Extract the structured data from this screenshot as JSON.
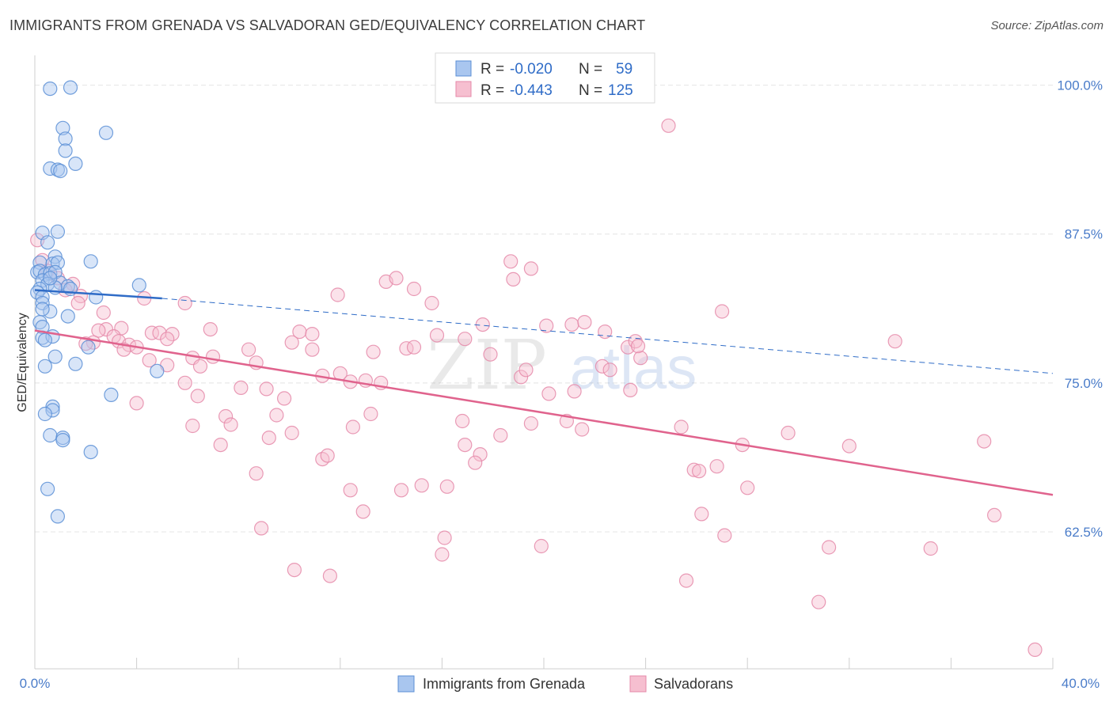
{
  "header": {
    "title": "IMMIGRANTS FROM GRENADA VS SALVADORAN GED/EQUIVALENCY CORRELATION CHART",
    "source": "Source: ZipAtlas.com"
  },
  "watermark": {
    "zip": "ZIP",
    "atlas": "atlas"
  },
  "colors": {
    "blue_fill": "#a9c6ef",
    "blue_stroke": "#5b8fd6",
    "blue_line": "#2f6cc7",
    "pink_fill": "#f6bfd0",
    "pink_stroke": "#e58aa9",
    "pink_line": "#e0638d",
    "axis_label": "#4a7cc9",
    "grid": "#e4e4e4"
  },
  "legend": {
    "rows": [
      {
        "r_label": "R = ",
        "r_value": "-0.020",
        "n_label": "N = ",
        "n_value": "59"
      },
      {
        "r_label": "R = ",
        "r_value": "-0.443",
        "n_label": "N = ",
        "n_value": "125"
      }
    ]
  },
  "chart_data": {
    "type": "scatter",
    "title": "IMMIGRANTS FROM GRENADA VS SALVADORAN GED/EQUIVALENCY CORRELATION CHART",
    "xlabel": "",
    "ylabel": "GED/Equivalency",
    "xlim": [
      0,
      40
    ],
    "ylim": [
      51,
      102.5
    ],
    "x_tick_labels": [
      "0.0%",
      "40.0%"
    ],
    "y_ticks": [
      62.5,
      75.0,
      87.5,
      100.0
    ],
    "y_tick_labels": [
      "62.5%",
      "75.0%",
      "87.5%",
      "100.0%"
    ],
    "legend_position": "bottom-center",
    "series": [
      {
        "name": "Immigrants from Grenada",
        "color": "blue",
        "r": -0.02,
        "n": 59,
        "trend": {
          "solid": [
            [
              0,
              82.8
            ],
            [
              5.0,
              82.1
            ]
          ],
          "dashed": [
            [
              5.0,
              82.1
            ],
            [
              40,
              75.8
            ]
          ]
        },
        "points": [
          [
            0.6,
            99.7
          ],
          [
            1.4,
            99.8
          ],
          [
            1.1,
            96.4
          ],
          [
            1.2,
            95.5
          ],
          [
            2.8,
            96.0
          ],
          [
            1.2,
            94.5
          ],
          [
            1.6,
            93.4
          ],
          [
            0.6,
            93.0
          ],
          [
            0.9,
            92.9
          ],
          [
            1.0,
            92.8
          ],
          [
            0.3,
            87.6
          ],
          [
            0.9,
            87.7
          ],
          [
            0.5,
            86.8
          ],
          [
            0.8,
            85.6
          ],
          [
            0.2,
            85.1
          ],
          [
            0.7,
            85.0
          ],
          [
            0.9,
            85.1
          ],
          [
            2.2,
            85.2
          ],
          [
            0.1,
            84.3
          ],
          [
            0.2,
            84.4
          ],
          [
            0.4,
            84.1
          ],
          [
            0.6,
            84.2
          ],
          [
            0.8,
            84.3
          ],
          [
            0.3,
            83.6
          ],
          [
            0.5,
            83.3
          ],
          [
            1.0,
            83.4
          ],
          [
            1.3,
            83.1
          ],
          [
            4.1,
            83.2
          ],
          [
            0.2,
            82.9
          ],
          [
            0.1,
            82.6
          ],
          [
            0.3,
            82.2
          ],
          [
            0.8,
            83.0
          ],
          [
            1.4,
            82.9
          ],
          [
            2.4,
            82.2
          ],
          [
            0.3,
            81.7
          ],
          [
            0.6,
            81.0
          ],
          [
            1.3,
            80.6
          ],
          [
            0.2,
            80.1
          ],
          [
            0.3,
            79.7
          ],
          [
            0.3,
            78.8
          ],
          [
            0.7,
            78.9
          ],
          [
            0.4,
            78.6
          ],
          [
            2.1,
            78.0
          ],
          [
            0.8,
            77.2
          ],
          [
            1.6,
            76.6
          ],
          [
            0.4,
            76.4
          ],
          [
            4.8,
            76.0
          ],
          [
            3.0,
            74.0
          ],
          [
            0.7,
            73.0
          ],
          [
            0.7,
            72.7
          ],
          [
            0.4,
            72.4
          ],
          [
            0.6,
            70.6
          ],
          [
            1.1,
            70.4
          ],
          [
            1.1,
            70.2
          ],
          [
            2.2,
            69.2
          ],
          [
            0.5,
            66.1
          ],
          [
            0.9,
            63.8
          ],
          [
            0.3,
            81.2
          ],
          [
            0.6,
            83.8
          ]
        ]
      },
      {
        "name": "Salvadorans",
        "color": "pink",
        "r": -0.443,
        "n": 125,
        "trend": {
          "solid": [
            [
              0,
              79.4
            ],
            [
              40,
              65.6
            ]
          ]
        },
        "points": [
          [
            0.1,
            87.0
          ],
          [
            0.3,
            85.3
          ],
          [
            0.5,
            84.4
          ],
          [
            0.9,
            83.8
          ],
          [
            1.5,
            83.3
          ],
          [
            1.2,
            82.8
          ],
          [
            1.8,
            82.3
          ],
          [
            1.7,
            81.7
          ],
          [
            4.3,
            82.1
          ],
          [
            5.9,
            81.7
          ],
          [
            2.7,
            80.9
          ],
          [
            2.8,
            79.5
          ],
          [
            3.4,
            79.6
          ],
          [
            2.5,
            79.4
          ],
          [
            3.1,
            78.9
          ],
          [
            3.3,
            78.5
          ],
          [
            2.3,
            78.4
          ],
          [
            2.0,
            78.3
          ],
          [
            4.6,
            79.2
          ],
          [
            4.9,
            79.2
          ],
          [
            5.4,
            79.1
          ],
          [
            5.2,
            78.7
          ],
          [
            6.9,
            79.5
          ],
          [
            3.7,
            78.2
          ],
          [
            4.0,
            78.0
          ],
          [
            3.5,
            77.8
          ],
          [
            4.5,
            76.9
          ],
          [
            5.2,
            76.5
          ],
          [
            6.2,
            77.1
          ],
          [
            7.0,
            77.2
          ],
          [
            6.5,
            76.4
          ],
          [
            8.4,
            77.8
          ],
          [
            8.7,
            76.7
          ],
          [
            10.4,
            79.3
          ],
          [
            10.1,
            78.4
          ],
          [
            10.9,
            79.1
          ],
          [
            10.9,
            77.8
          ],
          [
            9.8,
            73.7
          ],
          [
            11.3,
            75.6
          ],
          [
            9.1,
            74.5
          ],
          [
            8.1,
            74.6
          ],
          [
            6.4,
            73.9
          ],
          [
            5.9,
            75.0
          ],
          [
            4.0,
            73.3
          ],
          [
            7.5,
            72.2
          ],
          [
            7.7,
            71.5
          ],
          [
            6.2,
            71.4
          ],
          [
            9.5,
            72.3
          ],
          [
            10.1,
            70.8
          ],
          [
            9.2,
            70.4
          ],
          [
            7.3,
            69.8
          ],
          [
            11.3,
            68.6
          ],
          [
            11.5,
            68.9
          ],
          [
            12.0,
            75.8
          ],
          [
            12.4,
            75.1
          ],
          [
            13.0,
            75.2
          ],
          [
            13.6,
            75.0
          ],
          [
            13.2,
            72.4
          ],
          [
            12.5,
            71.3
          ],
          [
            12.4,
            66.0
          ],
          [
            12.9,
            64.2
          ],
          [
            8.7,
            67.4
          ],
          [
            8.9,
            62.8
          ],
          [
            10.2,
            59.3
          ],
          [
            11.6,
            58.8
          ],
          [
            11.9,
            82.4
          ],
          [
            13.3,
            77.6
          ],
          [
            13.8,
            83.5
          ],
          [
            14.2,
            83.8
          ],
          [
            14.9,
            82.9
          ],
          [
            15.6,
            81.7
          ],
          [
            15.8,
            79.0
          ],
          [
            14.6,
            77.9
          ],
          [
            14.9,
            78.0
          ],
          [
            14.4,
            66.0
          ],
          [
            15.2,
            66.4
          ],
          [
            16.9,
            78.7
          ],
          [
            17.9,
            77.4
          ],
          [
            16.8,
            71.8
          ],
          [
            16.9,
            69.8
          ],
          [
            17.5,
            69.0
          ],
          [
            18.3,
            70.6
          ],
          [
            17.3,
            68.3
          ],
          [
            16.2,
            66.3
          ],
          [
            16.1,
            62.0
          ],
          [
            16.0,
            60.6
          ],
          [
            17.6,
            79.9
          ],
          [
            18.7,
            85.2
          ],
          [
            18.8,
            83.7
          ],
          [
            19.5,
            84.6
          ],
          [
            20.1,
            79.8
          ],
          [
            19.1,
            75.5
          ],
          [
            19.3,
            76.1
          ],
          [
            20.2,
            74.1
          ],
          [
            19.5,
            71.6
          ],
          [
            20.9,
            71.8
          ],
          [
            19.9,
            61.3
          ],
          [
            21.1,
            79.9
          ],
          [
            21.6,
            80.1
          ],
          [
            22.3,
            76.4
          ],
          [
            21.2,
            74.3
          ],
          [
            21.5,
            71.1
          ],
          [
            22.4,
            79.3
          ],
          [
            22.6,
            76.1
          ],
          [
            23.3,
            78.0
          ],
          [
            23.6,
            78.5
          ],
          [
            23.8,
            77.1
          ],
          [
            23.4,
            74.4
          ],
          [
            23.7,
            78.1
          ],
          [
            24.9,
            96.6
          ],
          [
            27.0,
            81.0
          ],
          [
            25.4,
            71.3
          ],
          [
            25.6,
            58.4
          ],
          [
            25.9,
            67.7
          ],
          [
            26.1,
            67.6
          ],
          [
            26.2,
            64.0
          ],
          [
            26.8,
            68.0
          ],
          [
            27.1,
            62.2
          ],
          [
            27.8,
            69.8
          ],
          [
            28.0,
            66.2
          ],
          [
            29.6,
            70.8
          ],
          [
            30.8,
            56.6
          ],
          [
            31.2,
            61.2
          ],
          [
            32.0,
            69.7
          ],
          [
            33.8,
            78.5
          ],
          [
            35.2,
            61.1
          ],
          [
            37.3,
            70.1
          ],
          [
            37.7,
            63.9
          ],
          [
            39.3,
            52.6
          ]
        ]
      }
    ]
  }
}
